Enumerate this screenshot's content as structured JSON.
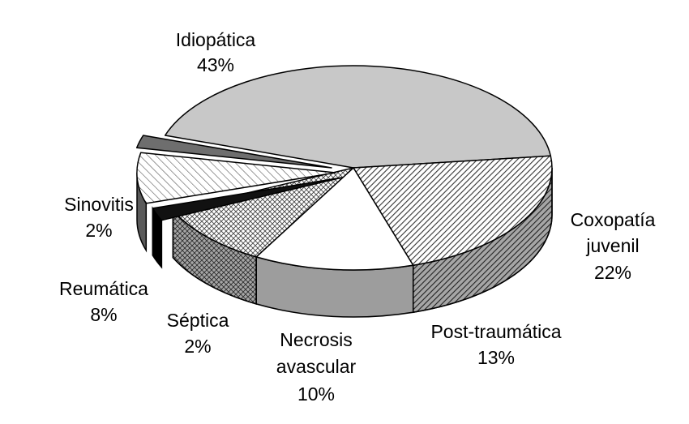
{
  "chart_data": {
    "type": "pie",
    "style": "3d-exploded-grayscale",
    "slices": [
      {
        "name": "Idiopática",
        "value": 43,
        "label": "43%",
        "fill": "#c8c8c8",
        "pattern": "solid"
      },
      {
        "name": "Coxopatía juvenil",
        "value": 22,
        "label": "22%",
        "fill": "#9a9a9a",
        "pattern": "diag-dense"
      },
      {
        "name": "Post-traumática",
        "value": 13,
        "label": "13%",
        "fill": "#ffffff",
        "pattern": "solid"
      },
      {
        "name": "Necrosis avascular",
        "value": 10,
        "label": "10%",
        "fill": "#d8d8d8",
        "pattern": "crosshatch"
      },
      {
        "name": "Séptica",
        "value": 2,
        "label": "2%",
        "fill": "#111111",
        "pattern": "solid"
      },
      {
        "name": "Reumática",
        "value": 8,
        "label": "8%",
        "fill": "#e6e6e6",
        "pattern": "diag-sparse"
      },
      {
        "name": "Sinovitis",
        "value": 2,
        "label": "2%",
        "fill": "#6e6e6e",
        "pattern": "solid"
      }
    ],
    "labels": [
      {
        "lines": [
          "Idiopática",
          "43%"
        ]
      },
      {
        "lines": [
          "Coxopatía",
          "juvenil",
          "22%"
        ]
      },
      {
        "lines": [
          "Post-traumática",
          "13%"
        ]
      },
      {
        "lines": [
          "Necrosis",
          "avascular",
          "10%"
        ]
      },
      {
        "lines": [
          "Séptica",
          "2%"
        ]
      },
      {
        "lines": [
          "Reumática",
          "8%"
        ]
      },
      {
        "lines": [
          "Sinovitis",
          "2%"
        ]
      }
    ]
  }
}
